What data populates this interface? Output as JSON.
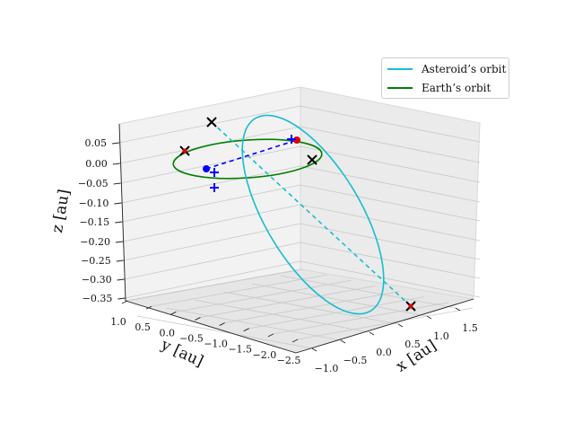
{
  "chart_data": {
    "type": "line",
    "projection": "3d",
    "title": "",
    "xlabel": "x [au]",
    "ylabel": "y [au]",
    "zlabel": "z [au]",
    "x_ticks": [
      "−1.0",
      "−0.5",
      "0.0",
      "0.5",
      "1.0",
      "1.5"
    ],
    "y_ticks": [
      "1.0",
      "0.5",
      "0.0",
      "−0.5",
      "−1.0",
      "−1.5",
      "−2.0",
      "−2.5"
    ],
    "z_ticks": [
      "0.05",
      "0.00",
      "−0.05",
      "−0.10",
      "−0.15",
      "−0.20",
      "−0.25",
      "−0.30",
      "−0.35"
    ],
    "legend_position": "top-right",
    "grid": true,
    "series": [
      {
        "name": "Asteroid’s orbit",
        "color": "#17becf"
      },
      {
        "name": "Earth’s orbit",
        "color": "#008000"
      }
    ]
  }
}
